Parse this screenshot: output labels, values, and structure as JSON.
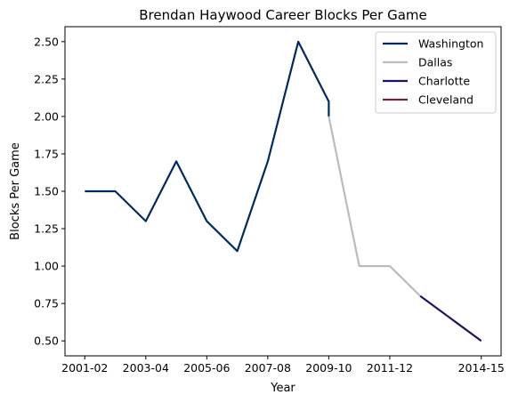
{
  "chart_data": {
    "type": "line",
    "title": "Brendan Haywood Career Blocks Per Game",
    "xlabel": "Year",
    "ylabel": "Blocks Per Game",
    "x_ticks": [
      "2001-02",
      "2003-04",
      "2005-06",
      "2007-08",
      "2009-10",
      "2011-12",
      "2014-15"
    ],
    "y_ticks": [
      "0.50",
      "0.75",
      "1.00",
      "1.25",
      "1.50",
      "1.75",
      "2.00",
      "2.25",
      "2.50"
    ],
    "ylim": [
      0.4,
      2.6
    ],
    "legend_position": "top-right",
    "grid": false,
    "series": [
      {
        "name": "Washington",
        "color": "#002B5C",
        "x": [
          "2001-02",
          "2002-03",
          "2003-04",
          "2004-05",
          "2005-06",
          "2006-07",
          "2007-08",
          "2008-09",
          "2009-10",
          "2009-10"
        ],
        "y": [
          1.5,
          1.5,
          1.3,
          1.7,
          1.3,
          1.1,
          1.7,
          2.5,
          2.1,
          2.0
        ]
      },
      {
        "name": "Dallas",
        "color": "#BBBBBB",
        "x": [
          "2009-10",
          "2010-11",
          "2011-12",
          "2012-13"
        ],
        "y": [
          2.0,
          1.0,
          1.0,
          0.8
        ]
      },
      {
        "name": "Charlotte",
        "color": "#1D1160",
        "x": [
          "2012-13",
          "2014-15"
        ],
        "y": [
          0.8,
          0.5
        ]
      },
      {
        "name": "Cleveland",
        "color": "#6F263D",
        "x": [],
        "y": []
      }
    ]
  }
}
